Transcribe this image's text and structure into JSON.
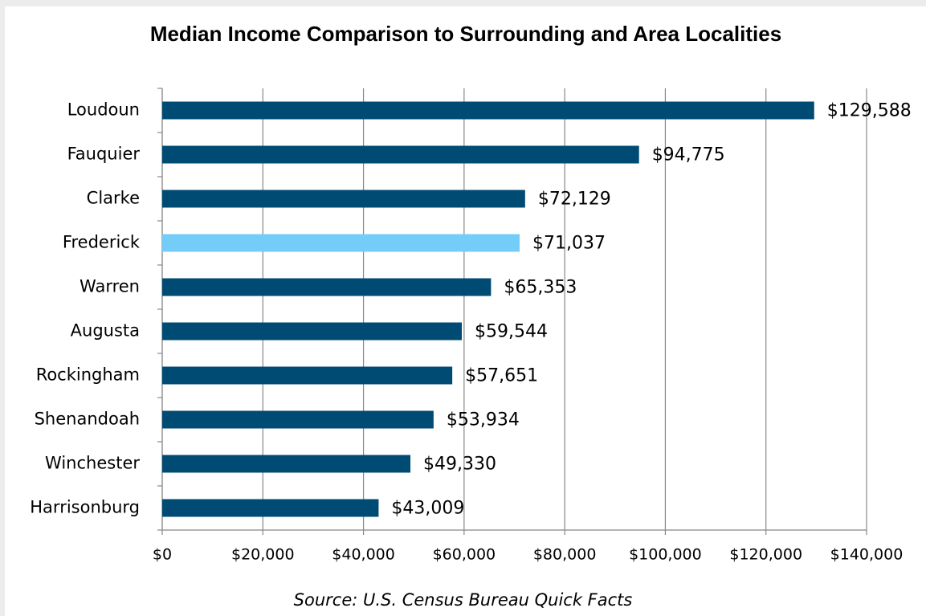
{
  "chart_data": {
    "type": "bar",
    "orientation": "horizontal",
    "title": "Median Income Comparison to Surrounding and Area Localities",
    "categories": [
      "Loudoun",
      "Fauquier",
      "Clarke",
      "Frederick",
      "Warren",
      "Augusta",
      "Rockingham",
      "Shenandoah",
      "Winchester",
      "Harrisonburg"
    ],
    "values": [
      129588,
      94775,
      72129,
      71037,
      65353,
      59544,
      57651,
      53934,
      49330,
      43009
    ],
    "value_labels": [
      "$129,588",
      "$94,775",
      "$72,129",
      "$71,037",
      "$65,353",
      "$59,544",
      "$57,651",
      "$53,934",
      "$49,330",
      "$43,009"
    ],
    "colors": [
      "#004b73",
      "#004b73",
      "#004b73",
      "#74cdf8",
      "#004b73",
      "#004b73",
      "#004b73",
      "#004b73",
      "#004b73",
      "#004b73"
    ],
    "xlim": [
      0,
      140000
    ],
    "xticks": [
      {
        "value": 0,
        "label": "$0"
      },
      {
        "value": 20000,
        "label": "$20,000"
      },
      {
        "value": 40000,
        "label": "$40,000"
      },
      {
        "value": 60000,
        "label": "$60,000"
      },
      {
        "value": 80000,
        "label": "$80,000"
      },
      {
        "value": 100000,
        "label": "$100,000"
      },
      {
        "value": 120000,
        "label": "$120,000"
      },
      {
        "value": 140000,
        "label": "$140,000"
      }
    ],
    "grid": true,
    "source": "Source:  U.S. Census Bureau Quick Facts"
  }
}
